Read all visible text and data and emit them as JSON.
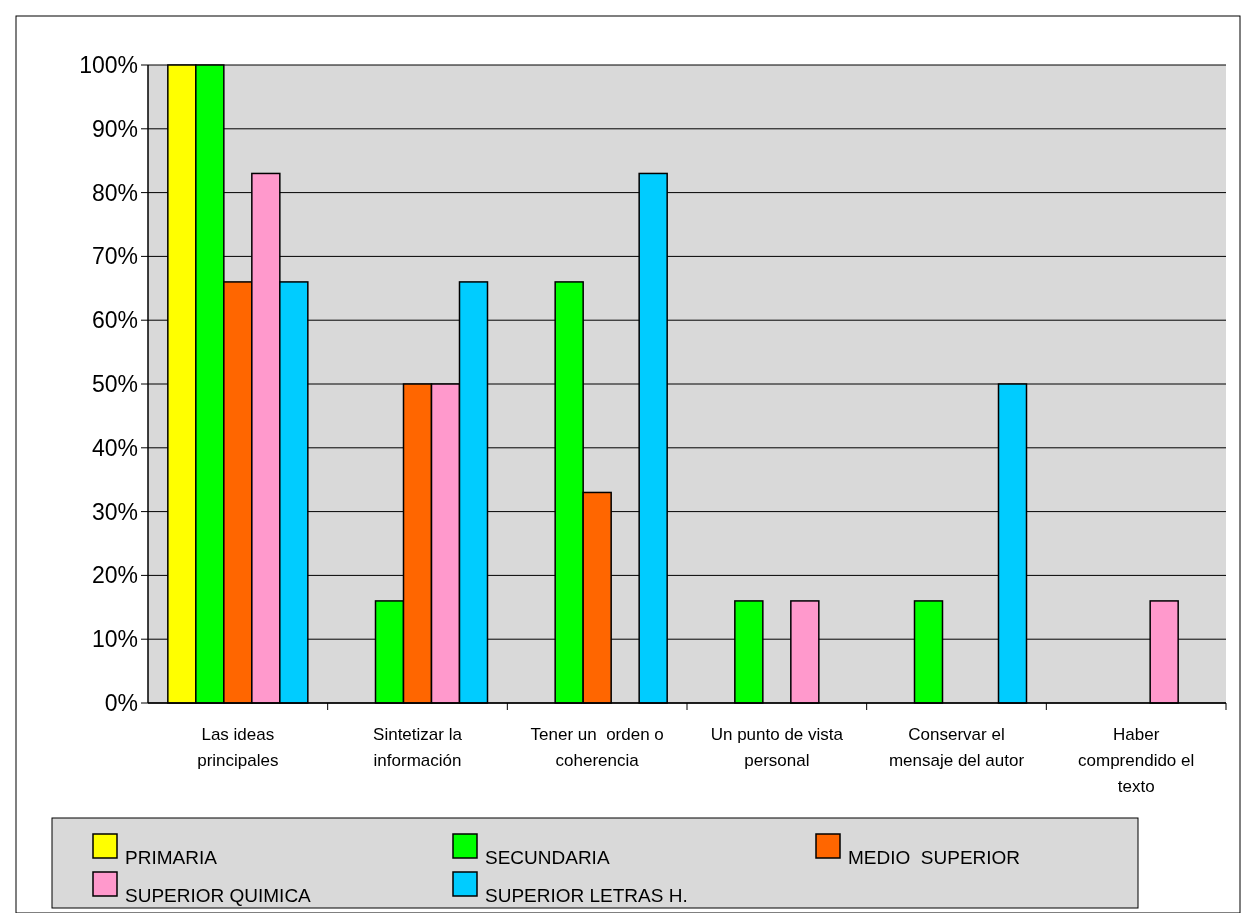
{
  "chart_data": {
    "type": "bar",
    "categories": [
      "Las ideas principales",
      "Sintetizar la información",
      "Tener un  orden o coherencia",
      "Un punto de vista personal",
      "Conservar el mensaje del autor",
      "Haber comprendido el texto"
    ],
    "series": [
      {
        "name": "PRIMARIA",
        "color": "#ffff00",
        "values": [
          100,
          0,
          0,
          0,
          0,
          0
        ]
      },
      {
        "name": "SECUNDARIA",
        "color": "#00ff00",
        "values": [
          100,
          16,
          66,
          16,
          16,
          0
        ]
      },
      {
        "name": "MEDIO  SUPERIOR",
        "color": "#ff6600",
        "values": [
          66,
          50,
          33,
          0,
          0,
          0
        ]
      },
      {
        "name": "SUPERIOR QUIMICA",
        "color": "#ff99cc",
        "values": [
          83,
          50,
          0,
          16,
          0,
          16
        ]
      },
      {
        "name": "SUPERIOR LETRAS H.",
        "color": "#00ccff",
        "values": [
          66,
          66,
          83,
          0,
          50,
          0
        ]
      }
    ],
    "ylim": [
      0,
      100
    ],
    "yticks": [
      {
        "value": 0,
        "label": "0%"
      },
      {
        "value": 10,
        "label": "10%"
      },
      {
        "value": 20,
        "label": "20%"
      },
      {
        "value": 30,
        "label": "30%"
      },
      {
        "value": 40,
        "label": "40%"
      },
      {
        "value": 50,
        "label": "50%"
      },
      {
        "value": 60,
        "label": "60%"
      },
      {
        "value": 70,
        "label": "70%"
      },
      {
        "value": 80,
        "label": "80%"
      },
      {
        "value": 90,
        "label": "90%"
      },
      {
        "value": 100,
        "label": "100%"
      }
    ],
    "grid": "y",
    "legend": "bottom"
  }
}
